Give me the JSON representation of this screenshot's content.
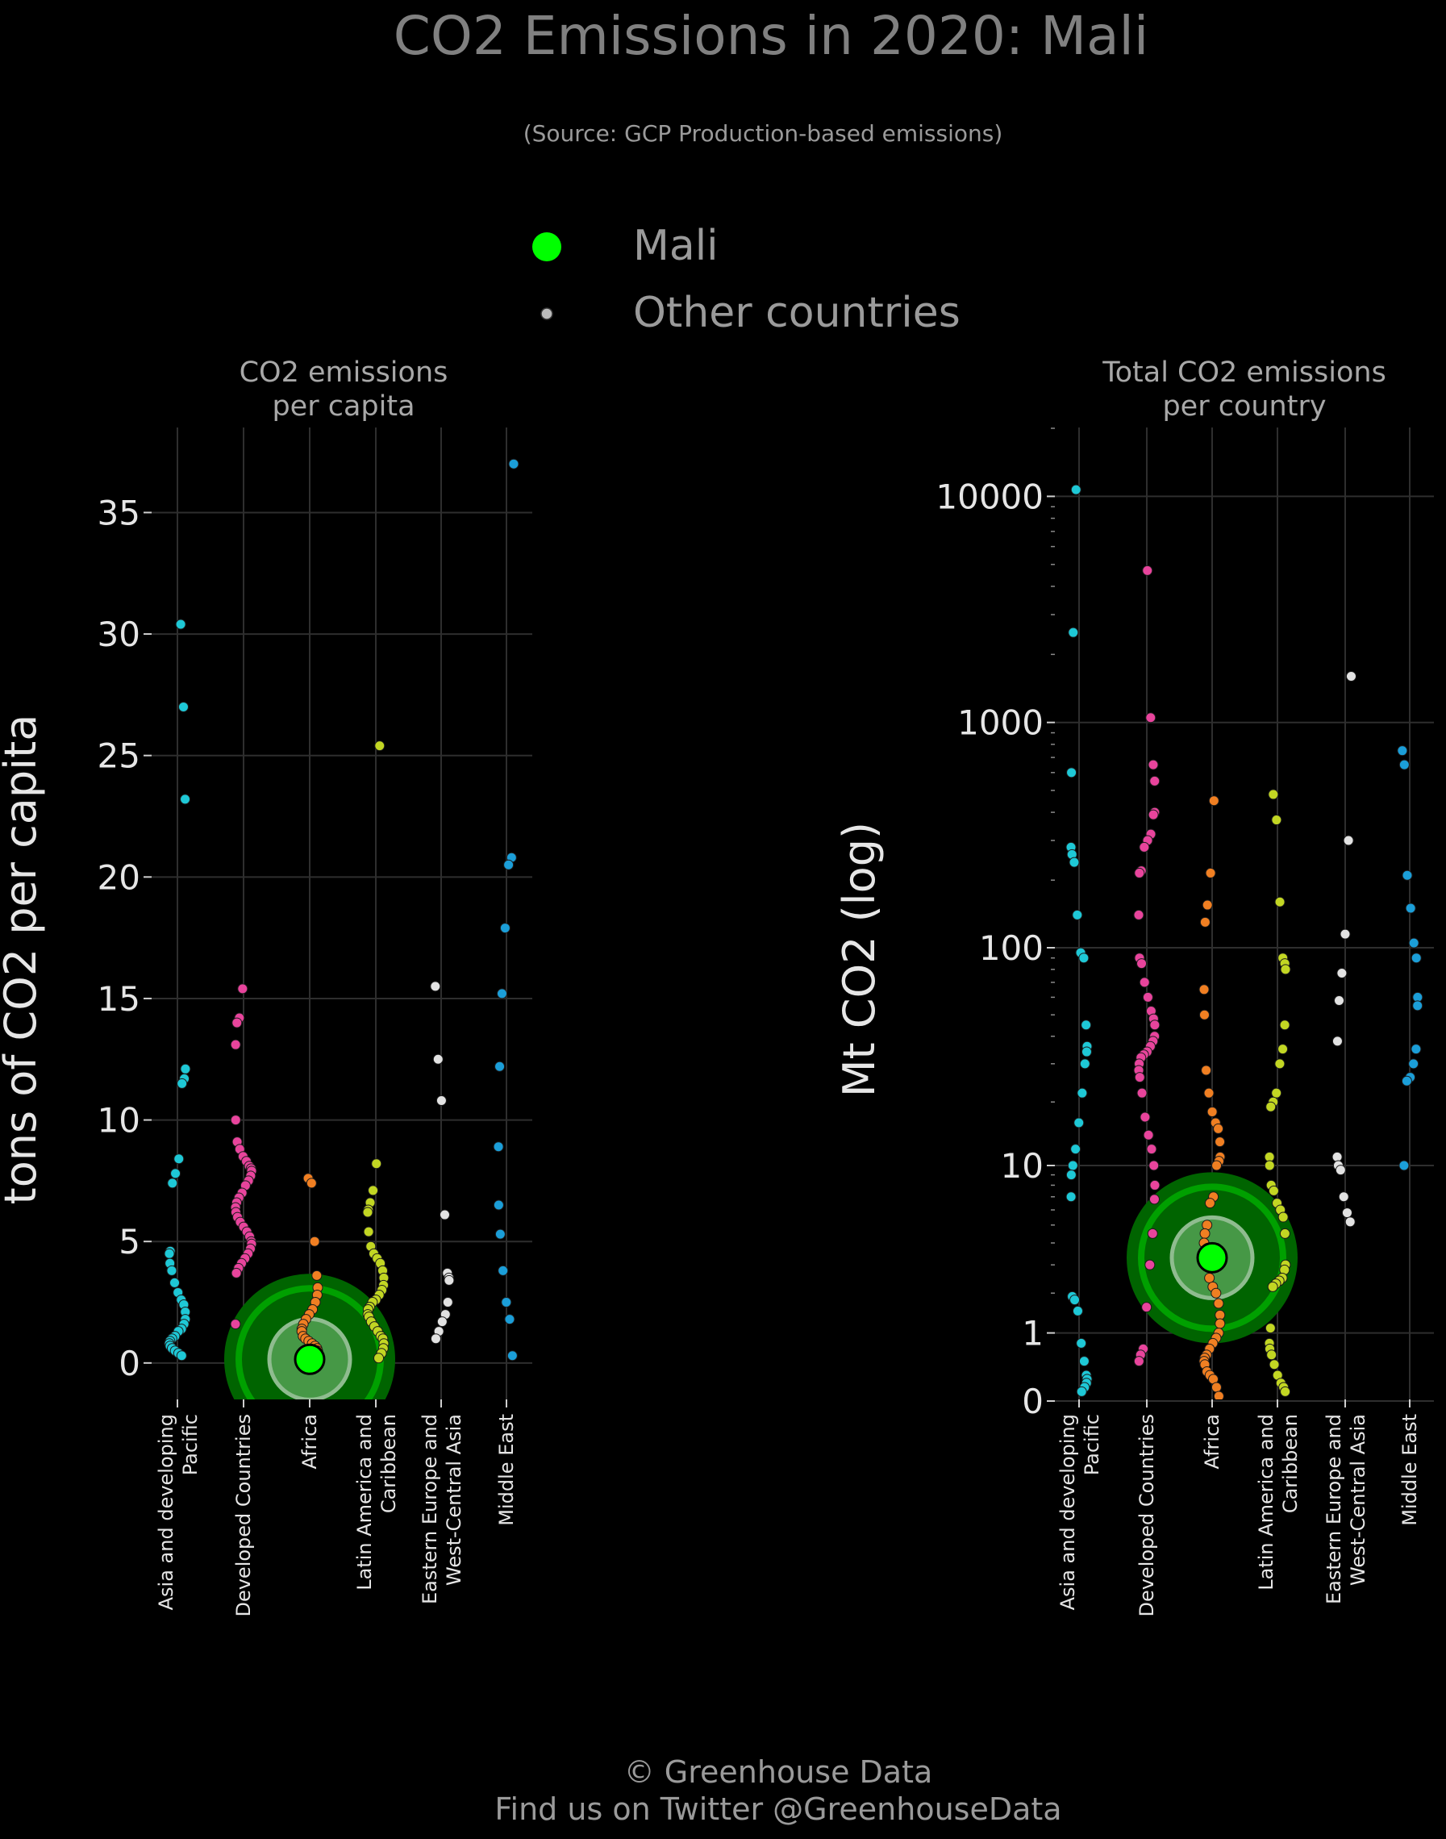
{
  "title": "CO2 Emissions in 2020: Mali",
  "subtitle": "(Source: GCP Production-based emissions)",
  "legend": [
    {
      "label": "Mali",
      "color": "#00ff00"
    },
    {
      "label": "Other countries",
      "color": "#bbbbbb"
    }
  ],
  "footer": {
    "line1": "© Greenhouse Data",
    "line2": "Find us on Twitter @GreenhouseData"
  },
  "colors": {
    "background": "#000000",
    "grid": "#2e2e2e",
    "highlight": "#00ff00",
    "highlight_halo": "#006400",
    "halo_ring": "#8fbc8f"
  },
  "chart_data": [
    {
      "type": "scatter",
      "title": "CO2 emissions\nper capita",
      "ylabel": "tons of CO2 per capita",
      "y_scale": "linear",
      "ylim": [
        -1.5,
        38.5
      ],
      "yticks": [
        0,
        5,
        10,
        15,
        20,
        25,
        30,
        35
      ],
      "ytick_labels": [
        "0",
        "5",
        "10",
        "15",
        "20",
        "25",
        "30",
        "35"
      ],
      "categories": [
        "Asia and developing\nPacific",
        "Developed Countries",
        "Africa",
        "Latin America and\nCaribbean",
        "Eastern Europe and\nWest-Central Asia",
        "Middle East"
      ],
      "category_colors": [
        "#1ec8d6",
        "#e8449c",
        "#f07f22",
        "#c2d623",
        "#e2e2e2",
        "#1b9ed8"
      ],
      "highlight": {
        "label": "Mali",
        "category": 2,
        "value": 0.15
      },
      "series": [
        {
          "name": "Asia and developing Pacific",
          "values": [
            30.4,
            27.0,
            23.2,
            12.1,
            11.7,
            11.5,
            8.4,
            7.8,
            7.4,
            4.6,
            4.5,
            4.1,
            3.8,
            3.3,
            2.9,
            2.6,
            2.4,
            2.1,
            1.8,
            1.6,
            1.4,
            1.3,
            1.1,
            1.0,
            0.9,
            0.8,
            0.7,
            0.6,
            0.5,
            0.4,
            0.3
          ]
        },
        {
          "name": "Developed Countries",
          "values": [
            15.4,
            14.2,
            14.0,
            13.1,
            10.0,
            9.1,
            8.8,
            8.5,
            8.3,
            8.1,
            8.0,
            7.9,
            7.7,
            7.5,
            7.3,
            7.0,
            6.8,
            6.6,
            6.4,
            6.2,
            6.0,
            5.8,
            5.6,
            5.4,
            5.2,
            5.0,
            4.9,
            4.7,
            4.5,
            4.3,
            4.1,
            3.9,
            3.7,
            1.6
          ]
        },
        {
          "name": "Africa",
          "values": [
            7.6,
            7.4,
            5.0,
            3.6,
            3.1,
            2.8,
            2.5,
            2.2,
            2.0,
            1.8,
            1.6,
            1.4,
            1.3,
            1.1,
            1.0,
            0.9,
            0.8,
            0.7,
            0.6,
            0.5,
            0.4,
            0.4,
            0.3,
            0.3,
            0.2,
            0.2,
            0.1
          ]
        },
        {
          "name": "Latin America and Caribbean",
          "values": [
            25.4,
            8.2,
            7.1,
            6.6,
            6.3,
            6.2,
            5.4,
            4.8,
            4.5,
            4.3,
            4.1,
            3.8,
            3.5,
            3.2,
            3.0,
            2.8,
            2.6,
            2.5,
            2.3,
            2.2,
            2.0,
            1.9,
            1.7,
            1.5,
            1.3,
            1.1,
            1.0,
            0.8,
            0.6,
            0.4,
            0.2
          ]
        },
        {
          "name": "Eastern Europe and West-Central Asia",
          "values": [
            15.5,
            12.5,
            10.8,
            6.1,
            3.7,
            3.5,
            3.4,
            2.5,
            2.0,
            1.7,
            1.3,
            1.0
          ]
        },
        {
          "name": "Middle East",
          "values": [
            37.0,
            20.8,
            20.5,
            17.9,
            15.2,
            12.2,
            8.9,
            6.5,
            5.3,
            3.8,
            2.5,
            1.8,
            0.3
          ]
        }
      ]
    },
    {
      "type": "scatter",
      "title": "Total CO2 emissions\nper country",
      "ylabel": "Mt CO2 (log)",
      "y_scale": "log (log10(1+x))",
      "ylim": [
        0,
        20000
      ],
      "yticks": [
        0,
        1,
        10,
        100,
        1000,
        10000
      ],
      "ytick_labels": [
        "0",
        "1",
        "10",
        "100",
        "1000",
        "10000"
      ],
      "categories": [
        "Asia and developing\nPacific",
        "Developed Countries",
        "Africa",
        "Latin America and\nCaribbean",
        "Eastern Europe and\nWest-Central Asia",
        "Middle East"
      ],
      "category_colors": [
        "#1ec8d6",
        "#e8449c",
        "#f07f22",
        "#c2d623",
        "#e2e2e2",
        "#1b9ed8"
      ],
      "highlight": {
        "label": "Mali",
        "category": 2,
        "value": 3.3
      },
      "series": [
        {
          "name": "Asia and developing Pacific",
          "values": [
            10700,
            2500,
            600,
            280,
            260,
            240,
            140,
            95,
            90,
            45,
            36,
            34,
            30,
            22,
            16,
            12,
            10,
            9,
            7,
            1.9,
            1.8,
            1.5,
            0.8,
            0.5,
            0.3,
            0.25,
            0.2,
            0.15,
            0.1
          ]
        },
        {
          "name": "Developed Countries",
          "values": [
            4700,
            1050,
            650,
            550,
            400,
            390,
            320,
            300,
            280,
            220,
            215,
            140,
            90,
            85,
            70,
            60,
            52,
            48,
            45,
            40,
            38,
            36,
            34,
            33,
            32,
            30,
            28,
            26,
            22,
            17,
            14,
            12,
            10,
            8,
            6.8,
            4.5,
            3.0,
            1.6,
            0.7,
            0.6,
            0.5
          ]
        },
        {
          "name": "Africa",
          "values": [
            450,
            215,
            155,
            130,
            65,
            50,
            28,
            22,
            18,
            16,
            15,
            13,
            11,
            10.5,
            10,
            7,
            6.5,
            5,
            4.5,
            4,
            3.5,
            3,
            2.5,
            2.2,
            2,
            1.7,
            1.4,
            1.2,
            1.0,
            0.9,
            0.8,
            0.7,
            0.6,
            0.55,
            0.5,
            0.45,
            0.35,
            0.3,
            0.25,
            0.15,
            0.05
          ]
        },
        {
          "name": "Latin America and Caribbean",
          "values": [
            480,
            370,
            160,
            90,
            85,
            80,
            45,
            35,
            30,
            22,
            20,
            19,
            11,
            10,
            8,
            7.5,
            6.5,
            6,
            5.5,
            4.5,
            3,
            2.8,
            2.5,
            2.4,
            2.3,
            2.2,
            1.1,
            0.8,
            0.7,
            0.6,
            0.45,
            0.3,
            0.2,
            0.15,
            0.1
          ]
        },
        {
          "name": "Eastern Europe and West-Central Asia",
          "values": [
            1600,
            300,
            115,
            77,
            58,
            38,
            11,
            10,
            9.5,
            7,
            5.8,
            5.2
          ]
        },
        {
          "name": "Middle East",
          "values": [
            750,
            650,
            210,
            150,
            105,
            90,
            60,
            55,
            35,
            30,
            26,
            25,
            10
          ]
        }
      ]
    }
  ]
}
